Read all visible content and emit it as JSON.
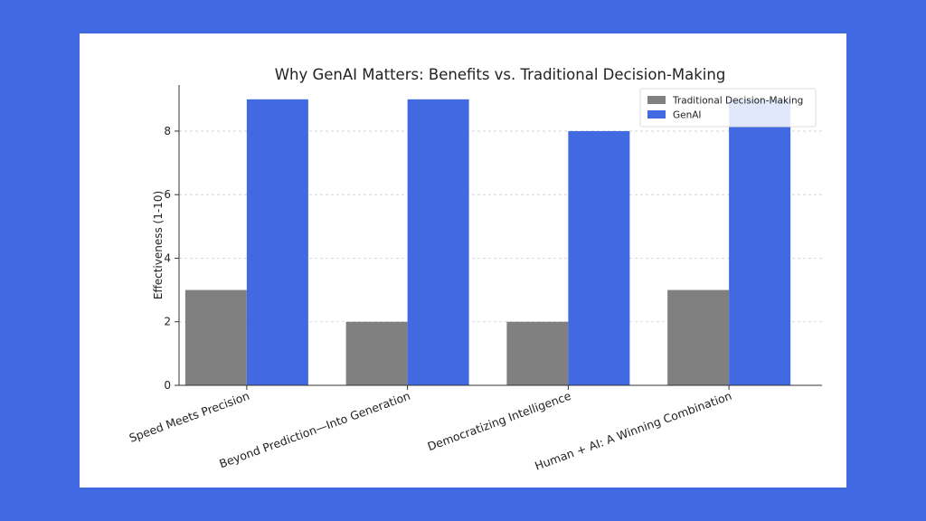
{
  "page": {
    "background": "#4169e1",
    "card_background": "#ffffff"
  },
  "chart_data": {
    "type": "bar",
    "title": "Why GenAI Matters: Benefits vs. Traditional Decision-Making",
    "xlabel": "",
    "ylabel": "Effectiveness (1-10)",
    "ylim": [
      0,
      9.45
    ],
    "yticks": [
      0,
      2,
      4,
      6,
      8
    ],
    "grid": true,
    "legend_position": "top-right",
    "categories": [
      "Speed Meets Precision",
      "Beyond Prediction—Into Generation",
      "Democratizing Intelligence",
      "Human + AI: A Winning Combination"
    ],
    "series": [
      {
        "name": "Traditional Decision-Making",
        "color": "#808080",
        "values": [
          3,
          2,
          2,
          3
        ]
      },
      {
        "name": "GenAI",
        "color": "#4169e1",
        "values": [
          9,
          9,
          8,
          9
        ]
      }
    ]
  }
}
